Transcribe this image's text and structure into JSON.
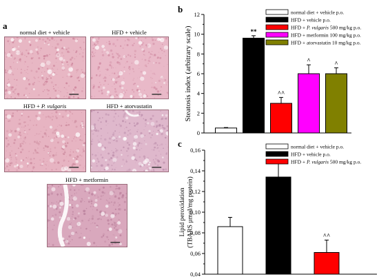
{
  "panel_a": {
    "letter": "a",
    "images": [
      {
        "caption_parts": [
          "normal diet + vehicle"
        ],
        "palette": {
          "base": "#e8b7c4",
          "spot": "#c97d95"
        }
      },
      {
        "caption_parts": [
          "HFD + vehicle"
        ],
        "palette": {
          "base": "#e9b9c8",
          "spot": "#d08aa1"
        }
      },
      {
        "caption_parts": [
          "HFD + ",
          "P. vulgaris"
        ],
        "palette": {
          "base": "#e7b4c2",
          "spot": "#c98599"
        }
      },
      {
        "caption_parts": [
          "HFD + atorvastatin"
        ],
        "palette": {
          "base": "#dfb8cc",
          "spot": "#b98aa8"
        }
      },
      {
        "caption_parts": [
          "HFD + metformin"
        ],
        "palette": {
          "base": "#d9a8bd",
          "spot": "#b77c98"
        }
      }
    ]
  },
  "chart_data": [
    {
      "panel": "b",
      "type": "bar",
      "ylabel": "Steatosis index (arbitrary scale)",
      "ylim": [
        0,
        12
      ],
      "yticks": [
        0,
        2,
        4,
        6,
        8,
        10,
        12
      ],
      "ytick_labels": [
        "0",
        "2",
        "4",
        "6",
        "8",
        "10",
        "12"
      ],
      "legend_position": "top-right",
      "bars": [
        {
          "legend": [
            "normal diet + vehicle p.o."
          ],
          "value": 0.5,
          "error": 0.05,
          "color": "#ffffff",
          "annotation": ""
        },
        {
          "legend": [
            "HFD + vehicle p.o."
          ],
          "value": 9.6,
          "error": 0.25,
          "color": "#000000",
          "annotation": "**"
        },
        {
          "legend": [
            "HFD + ",
            "P. vulgaris",
            " 500 mg/kg p.o."
          ],
          "value": 3.0,
          "error": 0.6,
          "color": "#ff0000",
          "annotation": "^^"
        },
        {
          "legend": [
            "HFD + metformin 100 mg/kg p.o."
          ],
          "value": 6.0,
          "error": 0.9,
          "color": "#ff00ff",
          "annotation": "^"
        },
        {
          "legend": [
            "HFD + atorvastatin 10 mg/kg p.o."
          ],
          "value": 6.0,
          "error": 0.6,
          "color": "#808000",
          "annotation": "^"
        }
      ]
    },
    {
      "panel": "c",
      "type": "bar",
      "ylabel": [
        "Lipid peroxidation",
        "(TBARS µmol/mg protein)"
      ],
      "ylim": [
        0.04,
        0.16
      ],
      "yticks": [
        0.04,
        0.06,
        0.08,
        0.1,
        0.12,
        0.14,
        0.16
      ],
      "ytick_labels": [
        "0,04",
        "0,06",
        "0,08",
        "0,10",
        "0,12",
        "0,14",
        "0,16"
      ],
      "legend_position": "top-right",
      "bars": [
        {
          "legend": [
            "normal diet + vehicle p.o."
          ],
          "value": 0.086,
          "error": 0.009,
          "color": "#ffffff",
          "annotation": ""
        },
        {
          "legend": [
            "HFD + vehicle p.o."
          ],
          "value": 0.134,
          "error": 0.016,
          "color": "#000000",
          "annotation": "**"
        },
        {
          "legend": [
            "HFD + ",
            "P. vulgaris",
            " 500 mg/kg p.o."
          ],
          "value": 0.061,
          "error": 0.012,
          "color": "#ff0000",
          "annotation": "^^"
        }
      ]
    }
  ]
}
